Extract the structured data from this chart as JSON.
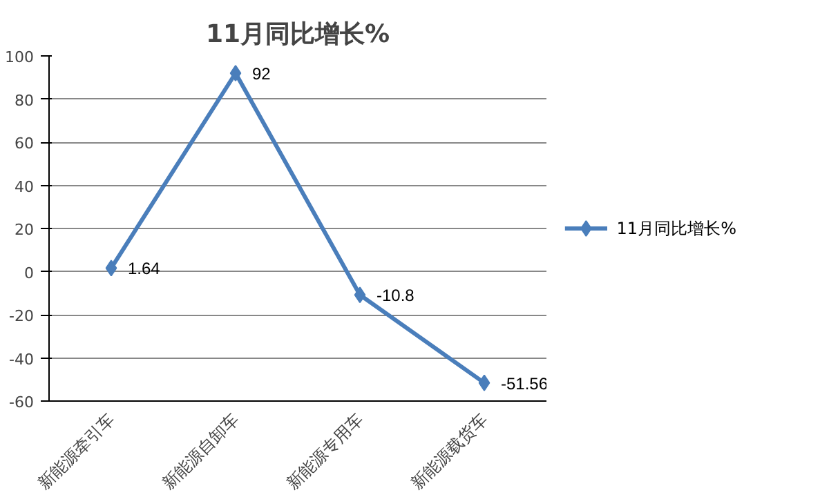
{
  "chart_data": {
    "type": "line",
    "title": "11月同比增长%",
    "categories": [
      "新能源牵引车",
      "新能源自卸车",
      "新能源专用车",
      "新能源载货车"
    ],
    "series": [
      {
        "name": "11月同比增长%",
        "color": "#4a7ebb",
        "values": [
          1.64,
          92,
          -10.8,
          -51.56
        ]
      }
    ],
    "ylim": [
      -60,
      100
    ],
    "yticks": [
      -60,
      -40,
      -20,
      0,
      20,
      40,
      60,
      80,
      100
    ],
    "grid": "y",
    "legend": "right",
    "marker": "diamond",
    "line_style": "solid",
    "data_labels": true
  }
}
